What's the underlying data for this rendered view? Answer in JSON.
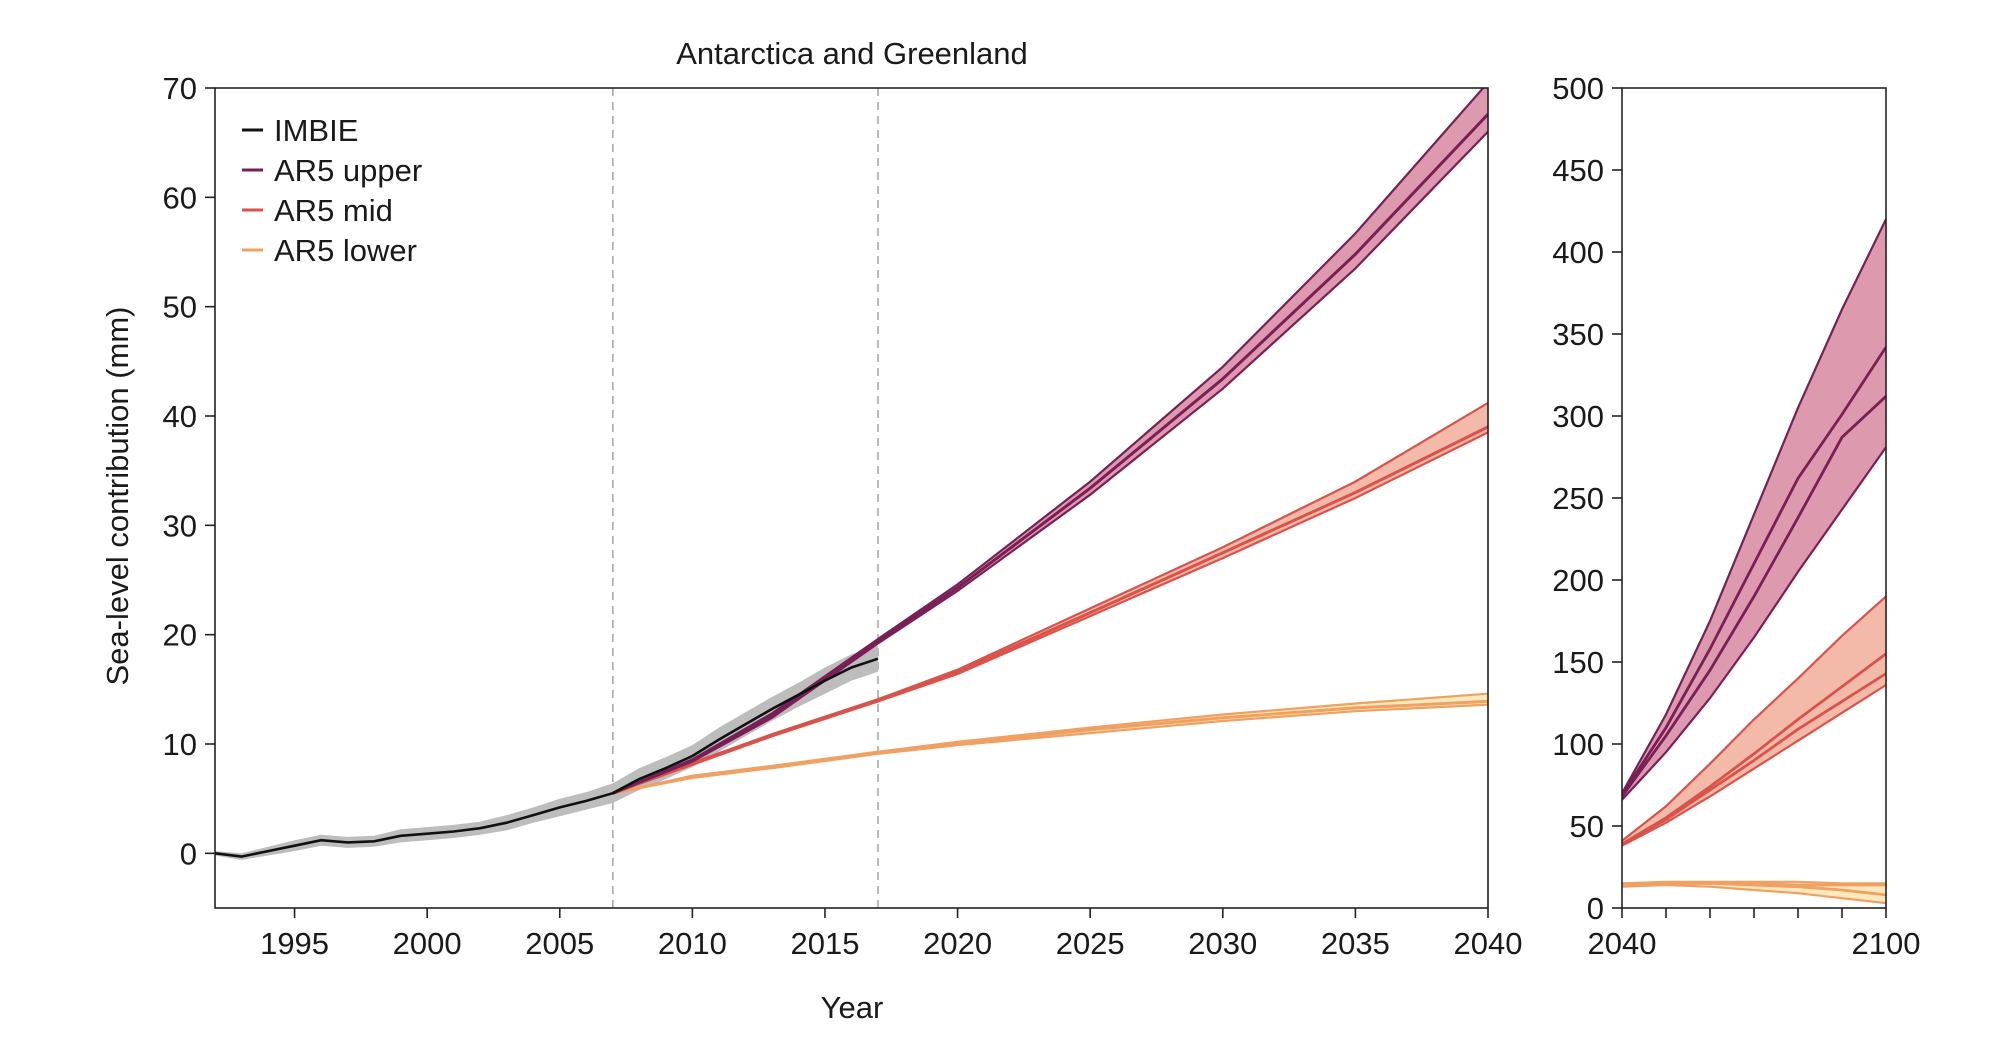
{
  "chart_data": [
    {
      "type": "line",
      "title": "Antarctica and Greenland",
      "xlabel": "Year",
      "ylabel": "Sea-level contribution (mm)",
      "xlim": [
        1992,
        2040
      ],
      "ylim": [
        -5,
        70
      ],
      "xticks": [
        1995,
        2000,
        2005,
        2010,
        2015,
        2020,
        2025,
        2030,
        2035,
        2040
      ],
      "yticks": [
        0,
        10,
        20,
        30,
        40,
        50,
        60,
        70
      ],
      "vlines": [
        2007,
        2017
      ],
      "legend": {
        "placement": "top-left",
        "entries": [
          "IMBIE",
          "AR5 upper",
          "AR5 mid",
          "AR5 lower"
        ]
      },
      "colors": {
        "IMBIE": "#111111",
        "AR5 upper": "#7a1f55",
        "AR5 upper band": "#d98fa6",
        "AR5 mid": "#d9534a",
        "AR5 mid band": "#f2b3a0",
        "AR5 lower": "#f0a060",
        "AR5 lower band": "#fce7b8",
        "IMBIE band": "#bdbdbd",
        "vline": "#a9a9a9"
      },
      "series": [
        {
          "name": "IMBIE",
          "x": [
            1992,
            1993,
            1994,
            1995,
            1996,
            1997,
            1998,
            1999,
            2000,
            2001,
            2002,
            2003,
            2004,
            2005,
            2006,
            2007,
            2008,
            2009,
            2010,
            2011,
            2012,
            2013,
            2014,
            2015,
            2016,
            2017
          ],
          "y": [
            0,
            -0.3,
            0.2,
            0.7,
            1.2,
            1.0,
            1.1,
            1.6,
            1.8,
            2.0,
            2.3,
            2.8,
            3.5,
            4.2,
            4.8,
            5.5,
            6.8,
            7.8,
            8.9,
            10.4,
            11.8,
            13.2,
            14.5,
            15.8,
            17.0,
            17.8
          ],
          "band_width": [
            0.2,
            0.3,
            0.4,
            0.5,
            0.5,
            0.5,
            0.5,
            0.6,
            0.6,
            0.6,
            0.6,
            0.7,
            0.7,
            0.8,
            0.8,
            0.9,
            1.0,
            1.0,
            1.0,
            1.1,
            1.1,
            1.1,
            1.1,
            1.2,
            1.2,
            1.2
          ]
        },
        {
          "name": "AR5 upper",
          "x": [
            2007,
            2010,
            2013,
            2017,
            2020,
            2025,
            2030,
            2035,
            2040
          ],
          "y_low": [
            5.5,
            8.4,
            12.4,
            19.2,
            24.0,
            32.8,
            42.5,
            53.5,
            66.0
          ],
          "y_mid": [
            5.5,
            8.5,
            12.6,
            19.4,
            24.3,
            33.4,
            43.4,
            54.8,
            67.6
          ],
          "y_high": [
            5.5,
            8.6,
            12.8,
            19.6,
            24.6,
            34.0,
            44.5,
            56.7,
            70.5
          ]
        },
        {
          "name": "AR5 mid",
          "x": [
            2007,
            2010,
            2013,
            2017,
            2020,
            2025,
            2030,
            2035,
            2040
          ],
          "y_low": [
            5.5,
            8.1,
            10.7,
            13.9,
            16.4,
            21.7,
            27.0,
            32.5,
            38.5
          ],
          "y_mid": [
            5.5,
            8.2,
            10.8,
            14.0,
            16.6,
            22.0,
            27.5,
            33.0,
            39.0
          ],
          "y_high": [
            5.5,
            8.3,
            10.9,
            14.1,
            16.8,
            22.4,
            28.0,
            34.0,
            41.2
          ]
        },
        {
          "name": "AR5 lower",
          "x": [
            2007,
            2010,
            2013,
            2017,
            2020,
            2025,
            2030,
            2035,
            2040
          ],
          "y_low": [
            5.5,
            6.9,
            7.8,
            9.1,
            9.9,
            11.0,
            12.1,
            13.0,
            13.6
          ],
          "y_mid": [
            5.5,
            7.0,
            7.9,
            9.2,
            10.0,
            11.3,
            12.4,
            13.3,
            13.9
          ],
          "y_high": [
            5.5,
            7.1,
            8.0,
            9.3,
            10.2,
            11.5,
            12.7,
            13.7,
            14.6
          ]
        }
      ]
    },
    {
      "type": "line",
      "title": "",
      "xlim": [
        2040,
        2100
      ],
      "ylim": [
        0,
        500
      ],
      "xticks": [
        2040,
        2100
      ],
      "xticks_minor": [
        2050,
        2060,
        2070,
        2080,
        2090
      ],
      "yticks": [
        0,
        50,
        100,
        150,
        200,
        250,
        300,
        350,
        400,
        450,
        500
      ],
      "series": [
        {
          "name": "AR5 upper",
          "x": [
            2040,
            2050,
            2060,
            2070,
            2080,
            2090,
            2100
          ],
          "y_low": [
            66,
            95,
            128,
            165,
            205,
            243,
            281
          ],
          "y_mid": [
            68,
            105,
            145,
            190,
            238,
            287,
            312
          ],
          "y_mid2": [
            69,
            110,
            158,
            210,
            262,
            301,
            342
          ],
          "y_high": [
            70,
            118,
            175,
            240,
            305,
            365,
            420
          ]
        },
        {
          "name": "AR5 mid",
          "x": [
            2040,
            2050,
            2060,
            2070,
            2080,
            2090,
            2100
          ],
          "y_low": [
            38,
            52,
            68,
            85,
            102,
            119,
            136
          ],
          "y_mid": [
            39,
            54,
            72,
            90,
            109,
            126,
            143
          ],
          "y_mid2": [
            39,
            55,
            74,
            94,
            115,
            135,
            155
          ],
          "y_high": [
            41,
            62,
            88,
            115,
            140,
            166,
            190
          ]
        },
        {
          "name": "AR5 lower",
          "x": [
            2040,
            2050,
            2060,
            2070,
            2080,
            2090,
            2100
          ],
          "y_low": [
            13,
            14,
            13,
            11,
            9,
            6,
            3
          ],
          "y_mid": [
            14,
            15,
            15,
            14,
            13,
            11,
            8
          ],
          "y_mid2": [
            14,
            15,
            15,
            15,
            14,
            14,
            14
          ],
          "y_high": [
            15,
            16,
            16,
            16,
            16,
            15,
            15
          ]
        }
      ]
    }
  ]
}
